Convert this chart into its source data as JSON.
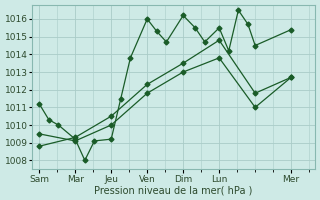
{
  "xlabel": "Pression niveau de la mer( hPa )",
  "bg_color": "#ceeae6",
  "grid_color": "#aaccc8",
  "line_color": "#1a5c28",
  "ylim": [
    1007.5,
    1016.8
  ],
  "yticks": [
    1008,
    1009,
    1010,
    1011,
    1012,
    1013,
    1014,
    1015,
    1016
  ],
  "x_labels": [
    "Sam",
    "Mar",
    "Jeu",
    "Ven",
    "Dim",
    "Lun",
    "Mer"
  ],
  "x_tick_pos": [
    0,
    1.5,
    3.0,
    4.5,
    6.0,
    7.5,
    10.5
  ],
  "xlim": [
    -0.3,
    11.5
  ],
  "series1_x": [
    0.0,
    0.4,
    0.8,
    1.5,
    1.9,
    2.3,
    3.0,
    3.4,
    3.8,
    4.5,
    4.9,
    5.3,
    6.0,
    6.5,
    6.9,
    7.5,
    7.9,
    8.3,
    8.7,
    9.0,
    10.5
  ],
  "series1_y": [
    1011.2,
    1010.3,
    1010.0,
    1009.2,
    1008.0,
    1009.1,
    1009.2,
    1011.5,
    1013.8,
    1016.0,
    1015.3,
    1014.7,
    1016.2,
    1015.5,
    1014.7,
    1015.5,
    1014.2,
    1016.5,
    1015.7,
    1014.5,
    1015.4
  ],
  "series2_x": [
    0.0,
    1.5,
    3.0,
    4.5,
    6.0,
    7.5,
    9.0,
    10.5
  ],
  "series2_y": [
    1009.5,
    1009.1,
    1010.0,
    1011.8,
    1013.0,
    1013.8,
    1011.0,
    1012.7
  ],
  "series3_x": [
    0.0,
    1.5,
    3.0,
    4.5,
    6.0,
    7.5,
    9.0,
    10.5
  ],
  "series3_y": [
    1008.8,
    1009.3,
    1010.5,
    1012.3,
    1013.5,
    1014.8,
    1011.8,
    1012.7
  ],
  "marker": "D",
  "markersize": 2.5,
  "linewidth": 0.9
}
